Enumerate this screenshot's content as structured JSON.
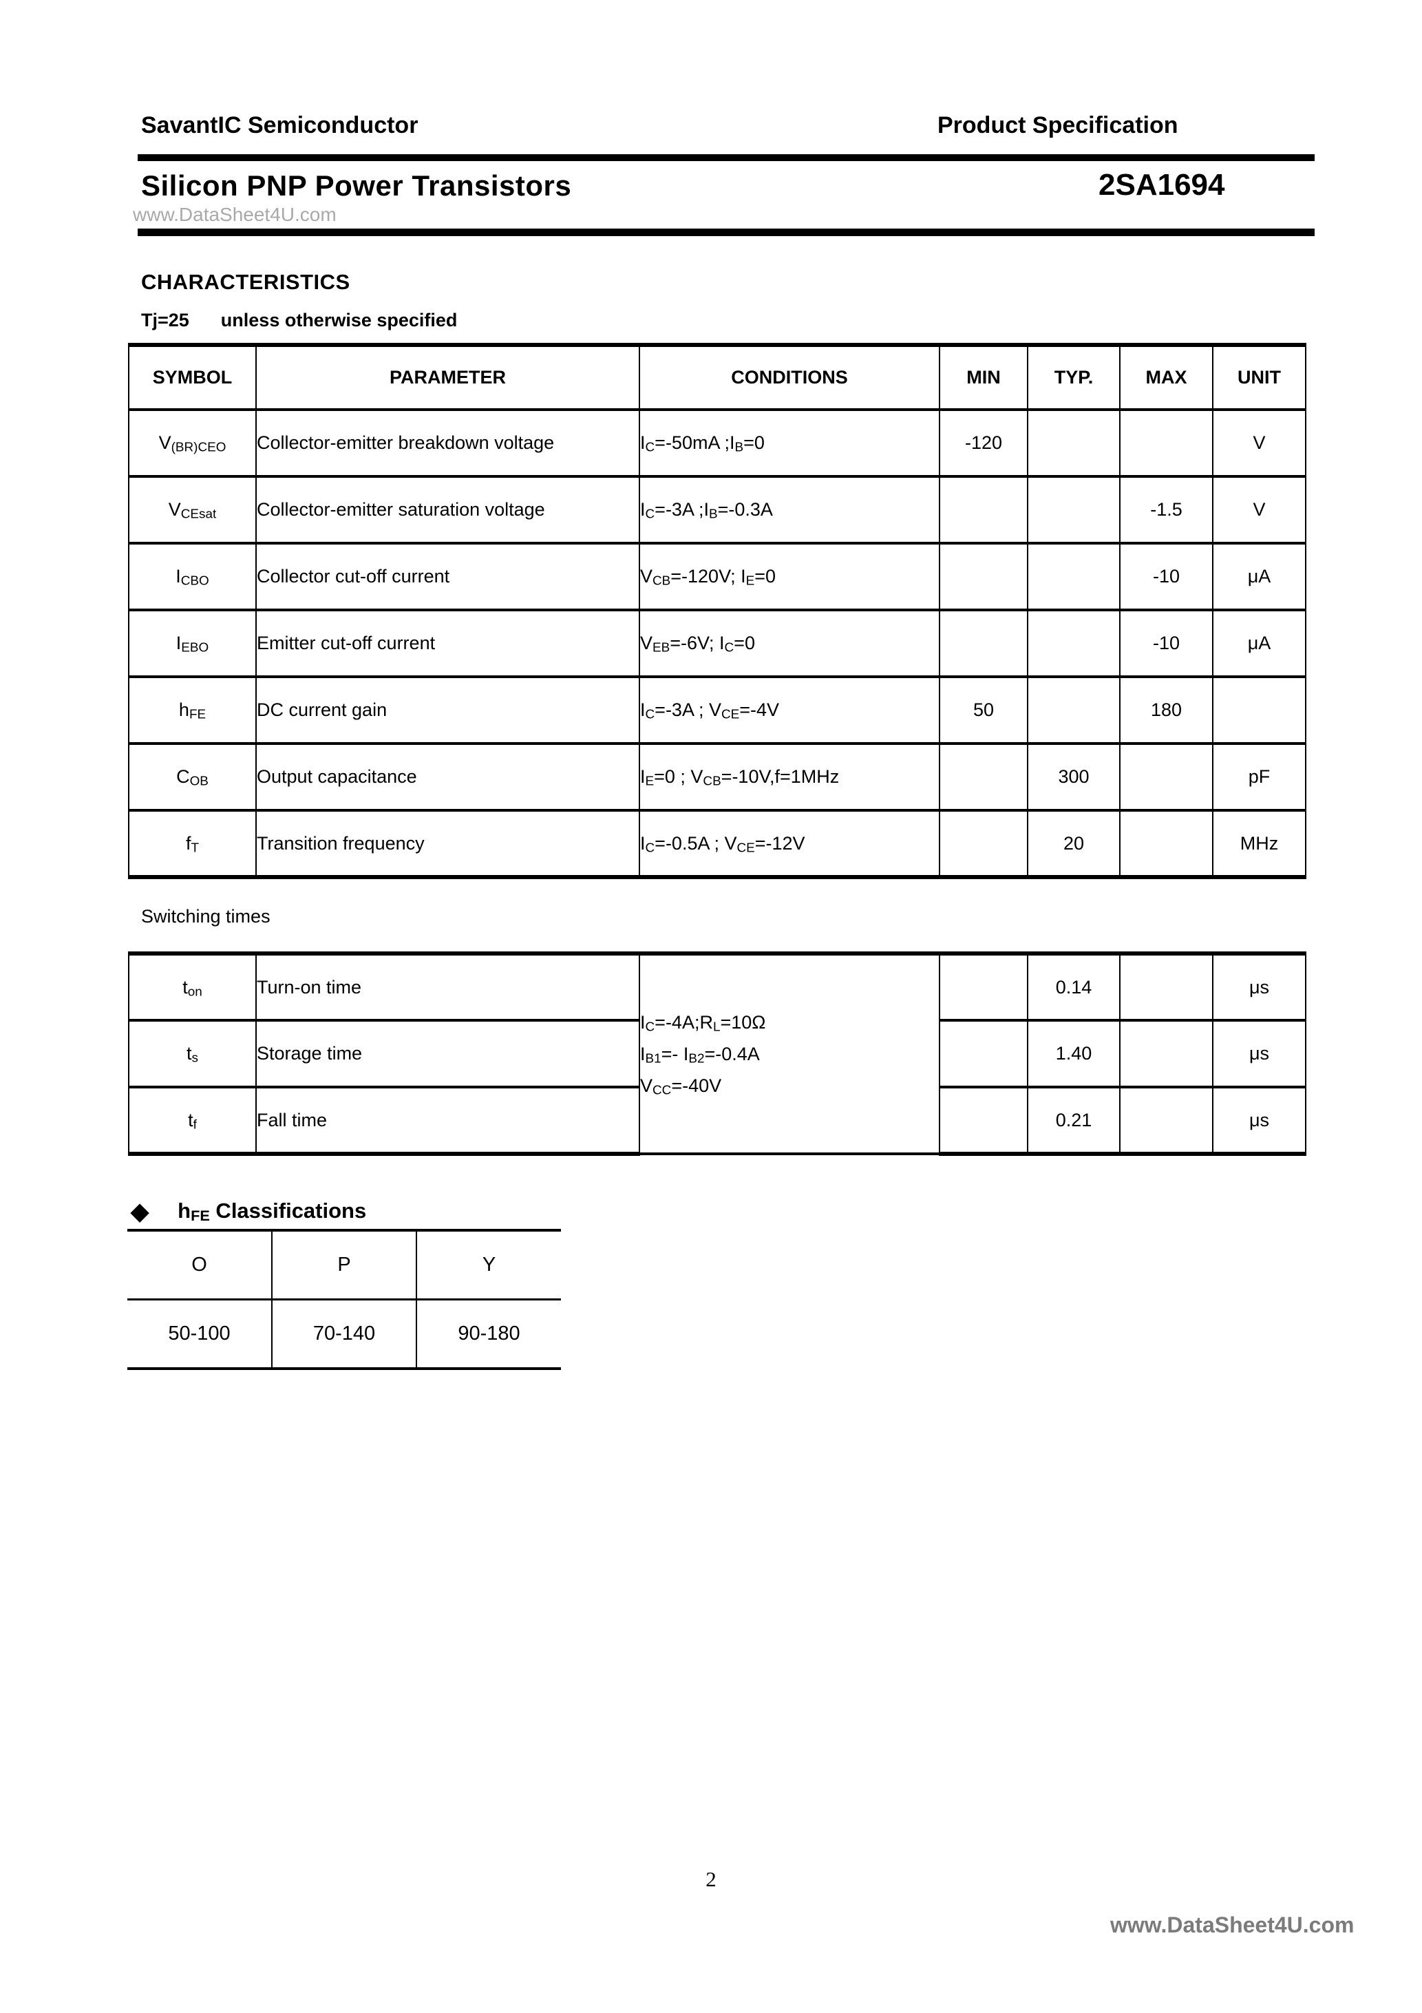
{
  "header": {
    "company": "SavantIC Semiconductor",
    "doc_type": "Product Specification",
    "title": "Silicon PNP Power Transistors",
    "part_number": "2SA1694"
  },
  "watermarks": {
    "title_area": "www.DataSheet4U.com",
    "footer_area": "www.DataSheet4U.com"
  },
  "characteristics": {
    "heading": "CHARACTERISTICS",
    "tj_label": "Tj=25",
    "tj_note": "unless otherwise specified"
  },
  "char_table": {
    "headers": {
      "symbol": "SYMBOL",
      "parameter": "PARAMETER",
      "conditions": "CONDITIONS",
      "min": "MIN",
      "typ": "TYP.",
      "max": "MAX",
      "unit": "UNIT"
    },
    "rows": [
      {
        "symbol": "V~(BR)CEO~",
        "parameter": "Collector-emitter breakdown voltage",
        "conditions": "I~C~=-50mA ;I~B~=0",
        "min": "-120",
        "typ": "",
        "max": "",
        "unit": "V"
      },
      {
        "symbol": "V~CEsat~",
        "parameter": "Collector-emitter saturation voltage",
        "conditions": "I~C~=-3A ;I~B~=-0.3A",
        "min": "",
        "typ": "",
        "max": "-1.5",
        "unit": "V"
      },
      {
        "symbol": "I~CBO~",
        "parameter": "Collector cut-off current",
        "conditions": "V~CB~=-120V; I~E~=0",
        "min": "",
        "typ": "",
        "max": "-10",
        "unit": "μA"
      },
      {
        "symbol": "I~EBO~",
        "parameter": "Emitter cut-off current",
        "conditions": "V~EB~=-6V; I~C~=0",
        "min": "",
        "typ": "",
        "max": "-10",
        "unit": "μA"
      },
      {
        "symbol": "h~FE~",
        "parameter": "DC current gain",
        "conditions": "I~C~=-3A ; V~CE~=-4V",
        "min": "50",
        "typ": "",
        "max": "180",
        "unit": ""
      },
      {
        "symbol": "C~OB~",
        "parameter": "Output capacitance",
        "conditions": "I~E~=0 ; V~CB~=-10V,f=1MHz",
        "min": "",
        "typ": "300",
        "max": "",
        "unit": "pF"
      },
      {
        "symbol": "f~T~",
        "parameter": "Transition frequency",
        "conditions": "I~C~=-0.5A ; V~CE~=-12V",
        "min": "",
        "typ": "20",
        "max": "",
        "unit": "MHz"
      }
    ]
  },
  "switching": {
    "label": "Switching times",
    "conditions_lines": [
      "I~C~=-4A;R~L~=10Ω",
      "I~B1~=- I~B2~=-0.4A",
      "V~CC~=-40V"
    ],
    "rows": [
      {
        "symbol": "t~on~",
        "parameter": "Turn-on time",
        "min": "",
        "typ": "0.14",
        "max": "",
        "unit": "μs"
      },
      {
        "symbol": "t~s~",
        "parameter": "Storage time",
        "min": "",
        "typ": "1.40",
        "max": "",
        "unit": "μs"
      },
      {
        "symbol": "t~f~",
        "parameter": "Fall time",
        "min": "",
        "typ": "0.21",
        "max": "",
        "unit": "μs"
      }
    ]
  },
  "classifications": {
    "diamond": "◆",
    "heading": "h~FE~ Classifications",
    "columns": [
      "O",
      "P",
      "Y"
    ],
    "values": [
      "50-100",
      "70-140",
      "90-180"
    ]
  },
  "footer": {
    "page_number": "2"
  },
  "colors": {
    "text": "#000000",
    "rule": "#000000",
    "watermark_light": "#a9a9a9",
    "watermark_dark": "#7b7b7b"
  }
}
